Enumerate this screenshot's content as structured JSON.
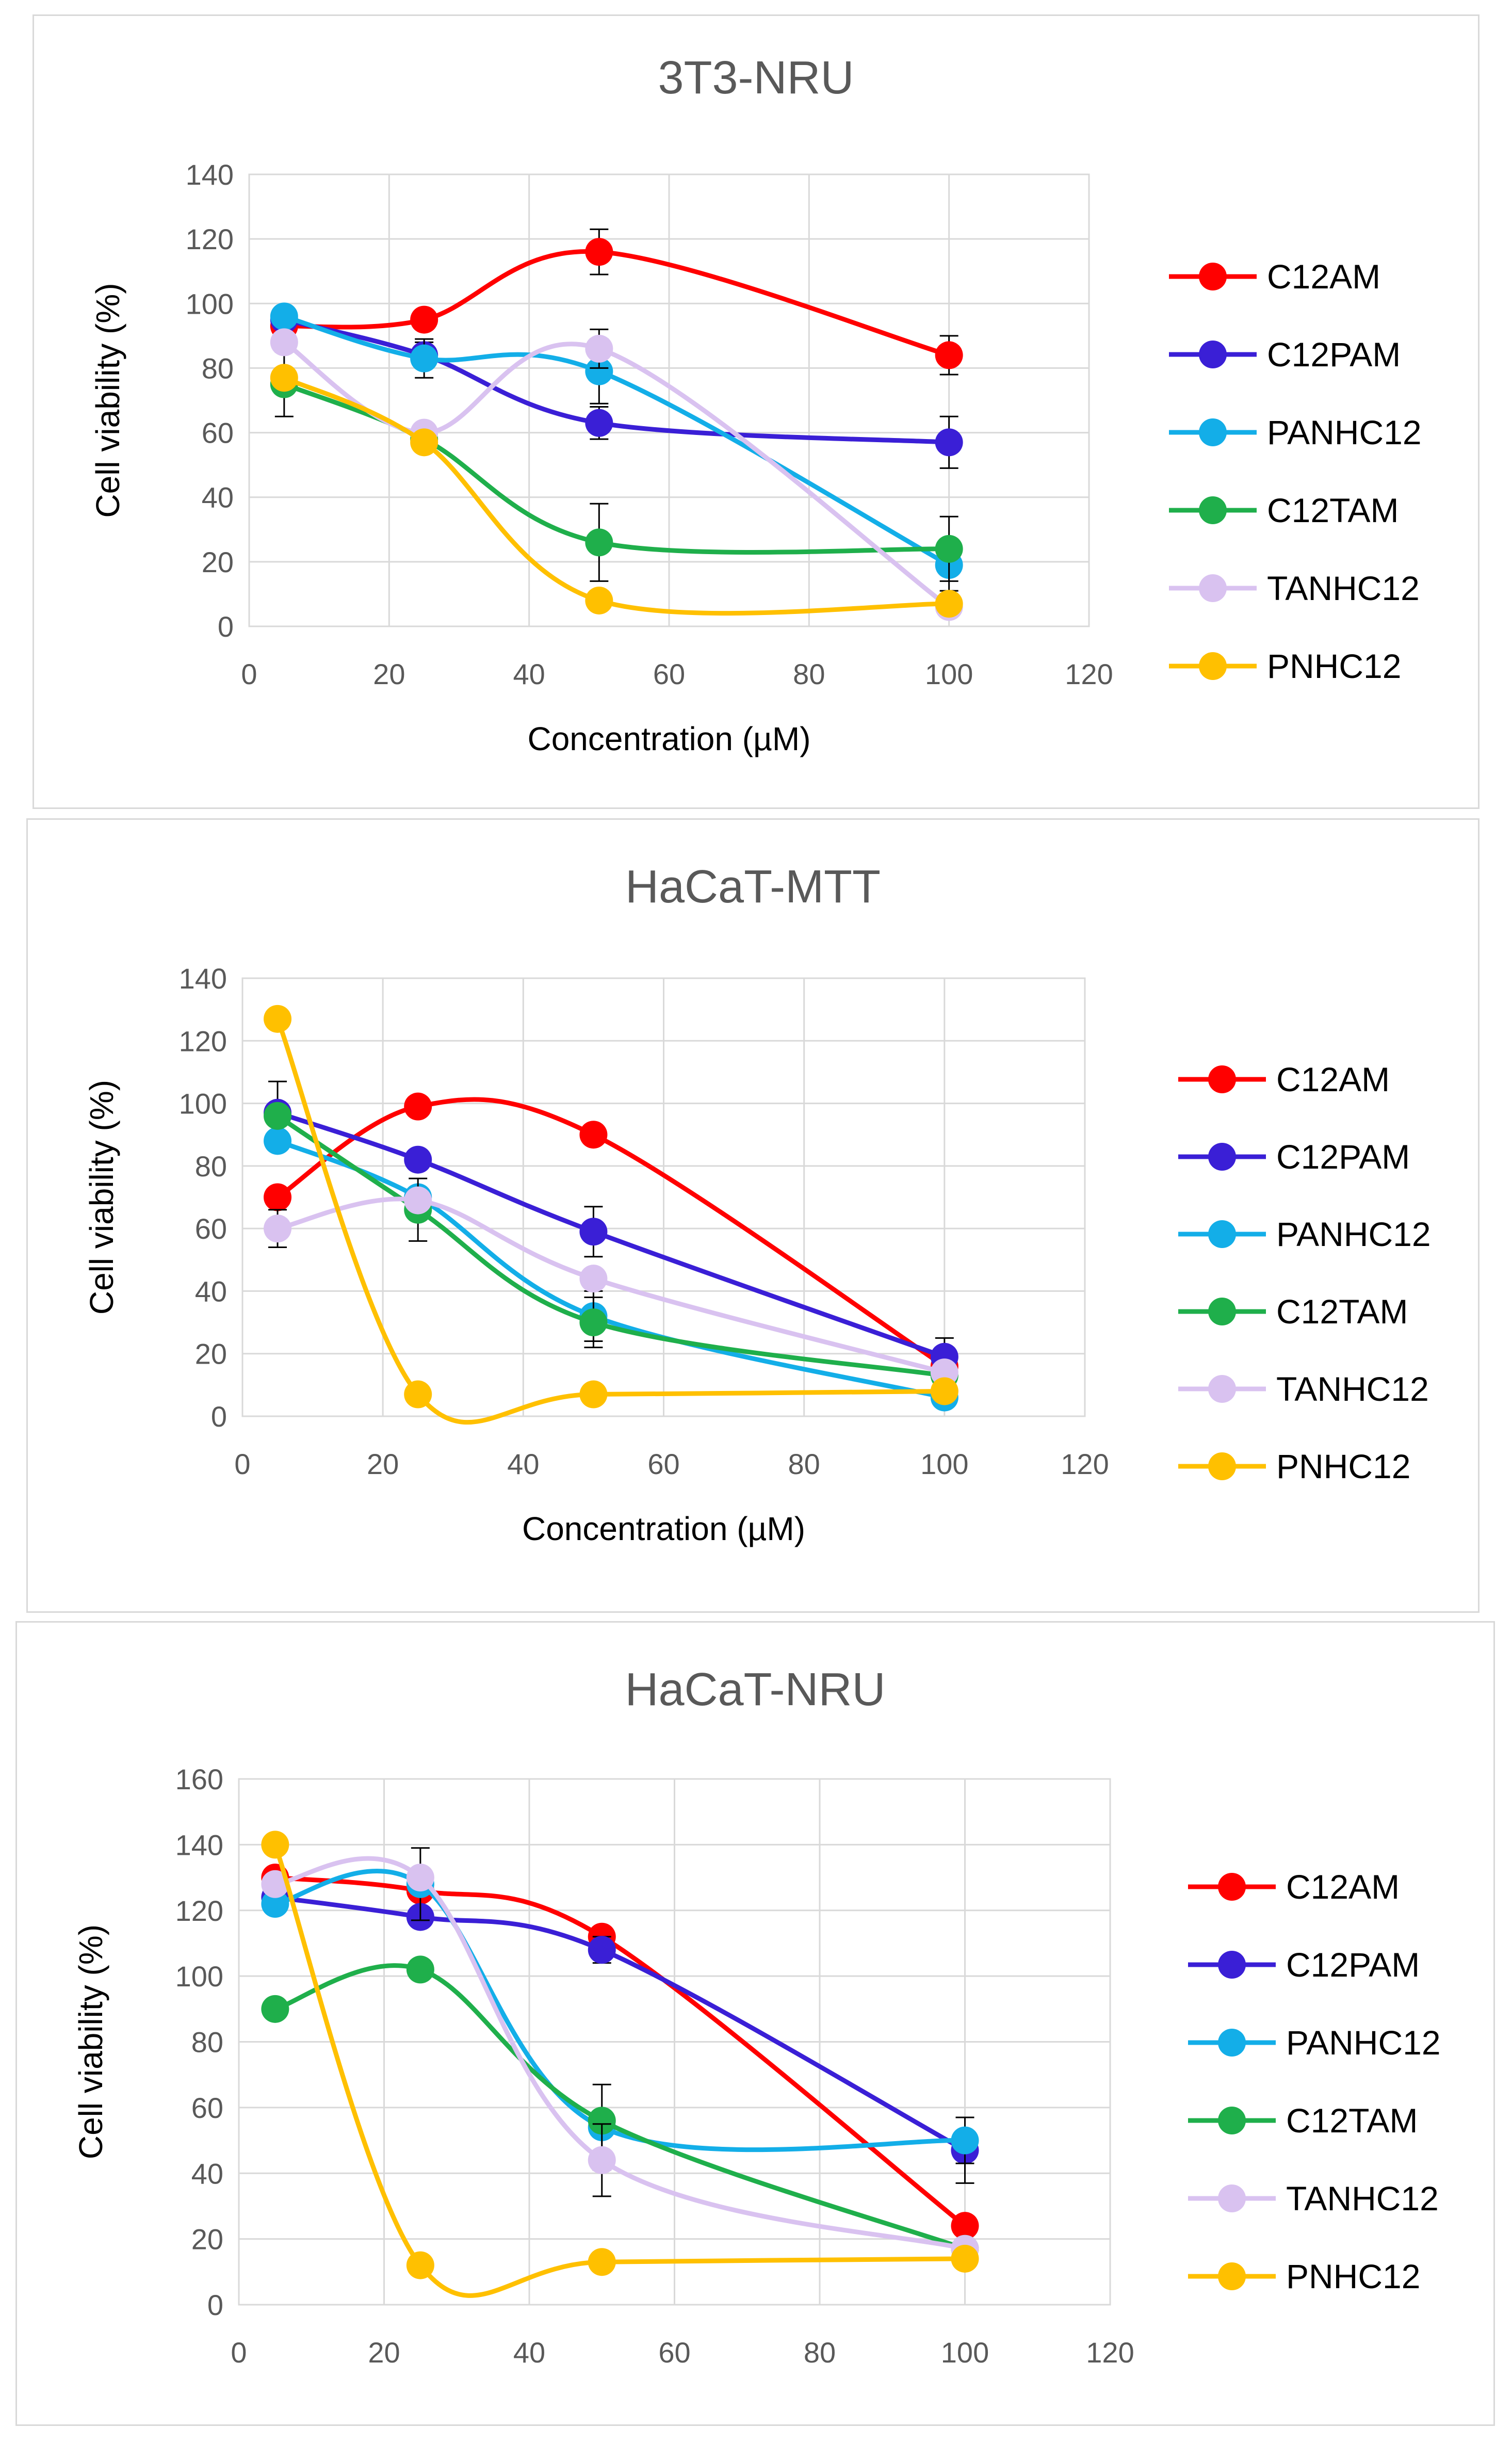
{
  "chart_data": [
    {
      "type": "line",
      "title": "3T3-NRU",
      "xlabel": "Concentration (µM)",
      "ylabel": "Cell viability (%)",
      "xlim": [
        0,
        120
      ],
      "ylim": [
        0,
        140
      ],
      "xticks": [
        "0",
        "20",
        "40",
        "60",
        "80",
        "100",
        "120"
      ],
      "yticks": [
        "0",
        "20",
        "40",
        "60",
        "80",
        "100",
        "120",
        "140"
      ],
      "grid": true,
      "legend_position": "right",
      "x": [
        5,
        25,
        50,
        100
      ],
      "series": [
        {
          "name": "C12AM",
          "color": "#ff0000",
          "values": [
            93,
            95,
            116,
            84
          ],
          "errors": [
            0,
            3,
            7,
            6
          ]
        },
        {
          "name": "C12PAM",
          "color": "#3a1fd6",
          "values": [
            95,
            84,
            63,
            57
          ],
          "errors": [
            0,
            4,
            5,
            8
          ]
        },
        {
          "name": "PANHC12",
          "color": "#13aee8",
          "values": [
            96,
            83,
            79,
            19
          ],
          "errors": [
            0,
            6,
            10,
            8
          ]
        },
        {
          "name": "C12TAM",
          "color": "#1faf4b",
          "values": [
            75,
            58,
            26,
            24
          ],
          "errors": [
            10,
            0,
            12,
            10
          ]
        },
        {
          "name": "TANHC12",
          "color": "#d9c2f0",
          "values": [
            88,
            60,
            86,
            6
          ],
          "errors": [
            0,
            0,
            6,
            0
          ]
        },
        {
          "name": "PNHC12",
          "color": "#ffc000",
          "values": [
            77,
            57,
            8,
            7
          ],
          "errors": [
            0,
            0,
            0,
            0
          ]
        }
      ]
    },
    {
      "type": "line",
      "title": "HaCaT-MTT",
      "xlabel": "Concentration (µM)",
      "ylabel": "Cell viability (%)",
      "xlim": [
        0,
        120
      ],
      "ylim": [
        0,
        140
      ],
      "xticks": [
        "0",
        "20",
        "40",
        "60",
        "80",
        "100",
        "120"
      ],
      "yticks": [
        "0",
        "20",
        "40",
        "60",
        "80",
        "100",
        "120",
        "140"
      ],
      "grid": true,
      "legend_position": "right",
      "x": [
        5,
        25,
        50,
        100
      ],
      "series": [
        {
          "name": "C12AM",
          "color": "#ff0000",
          "values": [
            70,
            99,
            90,
            16
          ],
          "errors": [
            0,
            0,
            0,
            4
          ]
        },
        {
          "name": "C12PAM",
          "color": "#3a1fd6",
          "values": [
            97,
            82,
            59,
            19
          ],
          "errors": [
            10,
            0,
            8,
            6
          ]
        },
        {
          "name": "PANHC12",
          "color": "#13aee8",
          "values": [
            88,
            70,
            32,
            6
          ],
          "errors": [
            0,
            0,
            8,
            0
          ]
        },
        {
          "name": "C12TAM",
          "color": "#1faf4b",
          "values": [
            96,
            66,
            30,
            13
          ],
          "errors": [
            0,
            10,
            8,
            0
          ]
        },
        {
          "name": "TANHC12",
          "color": "#d9c2f0",
          "values": [
            60,
            69,
            44,
            14
          ],
          "errors": [
            6,
            0,
            0,
            0
          ]
        },
        {
          "name": "PNHC12",
          "color": "#ffc000",
          "values": [
            127,
            7,
            7,
            8
          ],
          "errors": [
            0,
            0,
            0,
            0
          ]
        }
      ]
    },
    {
      "type": "line",
      "title": "HaCaT-NRU",
      "xlabel": "",
      "ylabel": "Cell viability (%)",
      "xlim": [
        0,
        120
      ],
      "ylim": [
        0,
        160
      ],
      "xticks": [
        "0",
        "20",
        "40",
        "60",
        "80",
        "100",
        "120"
      ],
      "yticks": [
        "0",
        "20",
        "40",
        "60",
        "80",
        "100",
        "120",
        "140",
        "160"
      ],
      "grid": true,
      "legend_position": "right",
      "x": [
        5,
        25,
        50,
        100
      ],
      "series": [
        {
          "name": "C12AM",
          "color": "#ff0000",
          "values": [
            130,
            126,
            112,
            24
          ],
          "errors": [
            0,
            0,
            0,
            0
          ]
        },
        {
          "name": "C12PAM",
          "color": "#3a1fd6",
          "values": [
            124,
            118,
            108,
            47
          ],
          "errors": [
            0,
            0,
            4,
            10
          ]
        },
        {
          "name": "PANHC12",
          "color": "#13aee8",
          "values": [
            122,
            128,
            54,
            50
          ],
          "errors": [
            0,
            11,
            13,
            7
          ]
        },
        {
          "name": "C12TAM",
          "color": "#1faf4b",
          "values": [
            90,
            102,
            56,
            17
          ],
          "errors": [
            0,
            0,
            0,
            0
          ]
        },
        {
          "name": "TANHC12",
          "color": "#d9c2f0",
          "values": [
            128,
            130,
            44,
            17
          ],
          "errors": [
            0,
            0,
            11,
            0
          ]
        },
        {
          "name": "PNHC12",
          "color": "#ffc000",
          "values": [
            140,
            12,
            13,
            14
          ],
          "errors": [
            0,
            0,
            0,
            0
          ]
        }
      ]
    }
  ]
}
